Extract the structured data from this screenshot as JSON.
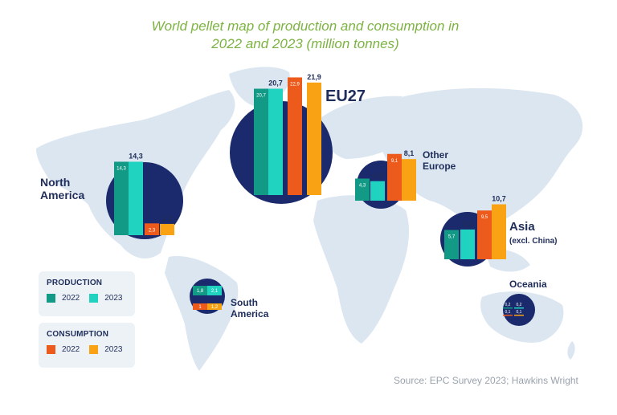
{
  "title_line1": "World pellet map of production and consumption in",
  "title_line2": "2022 and 2023 (million tonnes)",
  "source": "Source: EPC Survey 2023; Hawkins Wright",
  "colors": {
    "production_2022": "#139a86",
    "production_2023": "#1fd3c0",
    "consumption_2022": "#ec5a1c",
    "consumption_2023": "#f9a314",
    "circle": "#1a2a6c",
    "map": "#dbe6f0",
    "label": "#1f2d5a"
  },
  "legend": {
    "production": {
      "title": "PRODUCTION",
      "items": [
        {
          "label": "2022",
          "color": "#139a86"
        },
        {
          "label": "2023",
          "color": "#1fd3c0"
        }
      ]
    },
    "consumption": {
      "title": "CONSUMPTION",
      "items": [
        {
          "label": "2022",
          "color": "#ec5a1c"
        },
        {
          "label": "2023",
          "color": "#f9a314"
        }
      ]
    }
  },
  "chart_data": {
    "type": "bar",
    "title": "World pellet map of production and consumption in 2022 and 2023 (million tonnes)",
    "series": [
      "Production 2022",
      "Production 2023",
      "Consumption 2022",
      "Consumption 2023"
    ],
    "regions": [
      {
        "name": "EU27",
        "sublabel": "",
        "values": [
          20.7,
          20.7,
          22.9,
          21.9
        ],
        "labels": [
          "20,7",
          "20,7",
          "22,9",
          "21,9"
        ]
      },
      {
        "name": "North America",
        "sublabel": "",
        "values": [
          14.3,
          14.3,
          2.3,
          2.2
        ],
        "labels": [
          "14,3",
          "14,3",
          "2,3",
          "2,2"
        ]
      },
      {
        "name": "Other Europe",
        "sublabel": "",
        "values": [
          4.3,
          3.8,
          9.1,
          8.1
        ],
        "labels": [
          "4,3",
          "3,8",
          "9,1",
          "8,1"
        ]
      },
      {
        "name": "Asia",
        "sublabel": "(excl. China)",
        "values": [
          5.7,
          5.8,
          9.5,
          10.7
        ],
        "labels": [
          "5,7",
          "5,8",
          "9,5",
          "10,7"
        ]
      },
      {
        "name": "South America",
        "sublabel": "",
        "values": [
          1.8,
          2.1,
          1.0,
          1.2
        ],
        "labels": [
          "1,8",
          "2,1",
          "1",
          "1,2"
        ]
      },
      {
        "name": "Oceania",
        "sublabel": "",
        "values": [
          0.2,
          0.2,
          0.1,
          0.1
        ],
        "labels": [
          "0,2",
          "0,2",
          "0,1",
          "0,1"
        ]
      }
    ]
  }
}
